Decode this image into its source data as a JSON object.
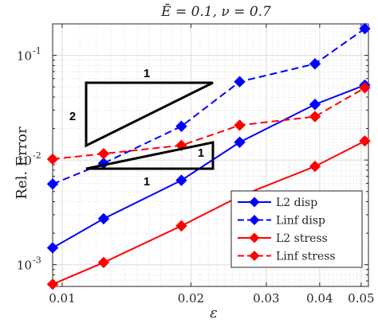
{
  "chart_data": {
    "type": "line",
    "title": "Ē = 0.1, ν = 0.7",
    "xlabel": "ε",
    "ylabel": "Rel. Error",
    "xscale": "log",
    "yscale": "log",
    "xlim": [
      0.0095,
      0.052
    ],
    "ylim": [
      0.00062,
      0.2
    ],
    "grid": true,
    "x_ticks": [
      0.01,
      0.02,
      0.03,
      0.04,
      0.05
    ],
    "x_tick_labels": [
      "0.01",
      "0.02",
      "0.03",
      "0.04",
      "0.05"
    ],
    "y_ticks": [
      0.001,
      0.01,
      0.1
    ],
    "y_tick_labels": [
      {
        "base": "10",
        "exp": "-3"
      },
      {
        "base": "10",
        "exp": "-2"
      },
      {
        "base": "10",
        "exp": "-1"
      }
    ],
    "x": [
      0.0095,
      0.0125,
      0.019,
      0.026,
      0.039,
      0.051
    ],
    "series": [
      {
        "name": "L2 disp",
        "color": "#0000ff",
        "dash": "solid",
        "values": [
          0.00145,
          0.00275,
          0.0064,
          0.0148,
          0.034,
          0.052
        ]
      },
      {
        "name": "Linf disp",
        "color": "#0000ff",
        "dash": "dashed",
        "values": [
          0.0059,
          0.0093,
          0.021,
          0.056,
          0.083,
          0.18
        ]
      },
      {
        "name": "L2 stress",
        "color": "#ff0000",
        "dash": "solid",
        "values": [
          0.00065,
          0.00105,
          0.00235,
          0.0045,
          0.0087,
          0.0152
        ]
      },
      {
        "name": "Linf stress",
        "color": "#ff0000",
        "dash": "dashed",
        "values": [
          0.0102,
          0.0115,
          0.0138,
          0.0215,
          0.026,
          0.049
        ]
      }
    ],
    "slope_triangles": [
      {
        "label_horizontal": "1",
        "label_vertical": "2"
      },
      {
        "label_horizontal": "1",
        "label_vertical": "1"
      }
    ],
    "legend_position": "bottom-right"
  }
}
